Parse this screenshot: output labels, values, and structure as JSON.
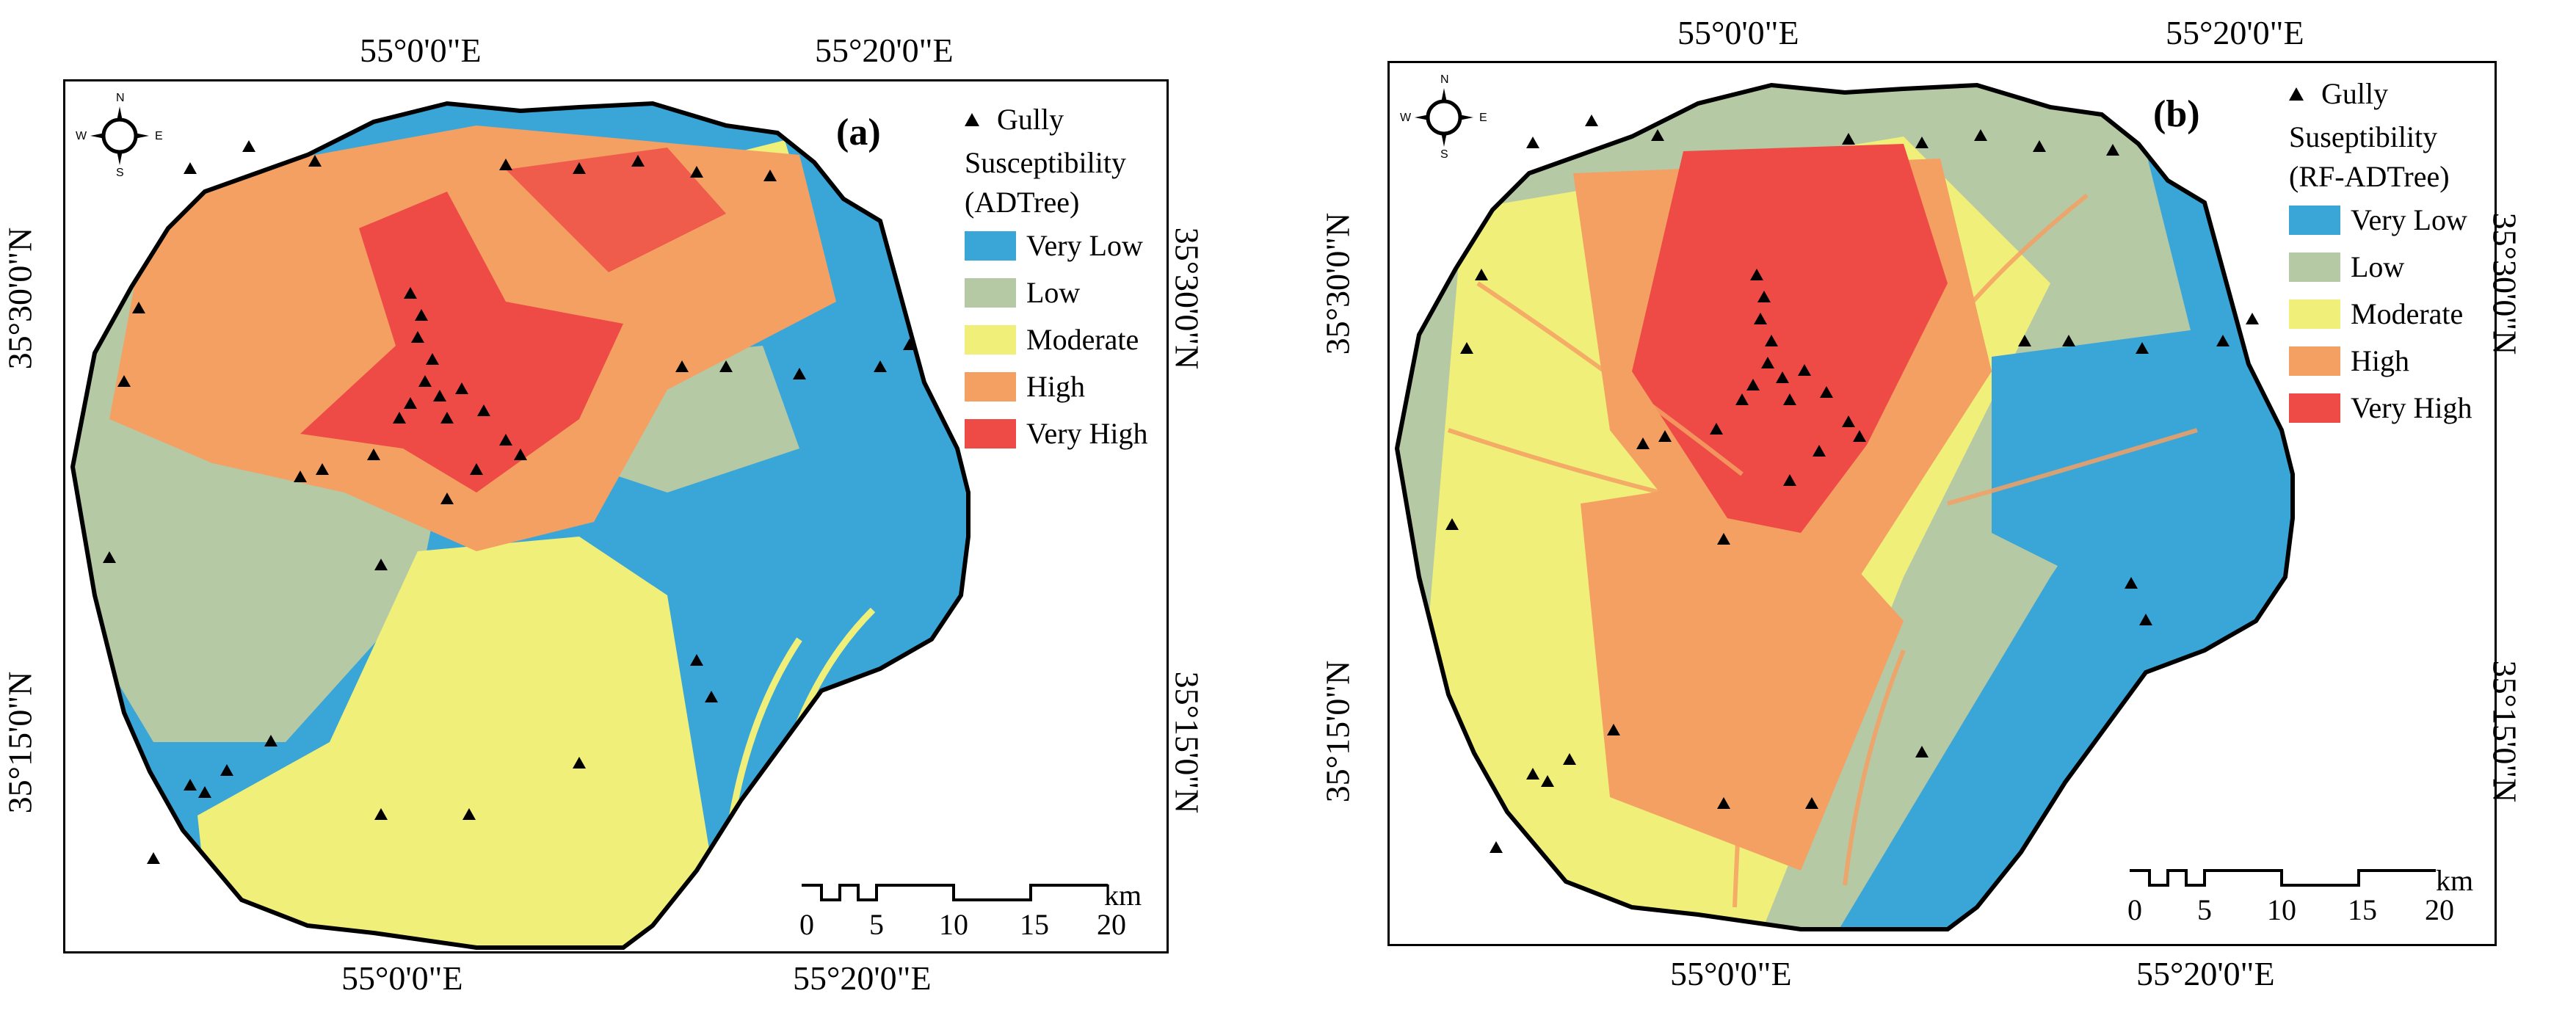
{
  "panels": [
    {
      "tag": "(a)",
      "legend": {
        "marker_label": "Gully",
        "title_lines": [
          "Susceptibility",
          "(ADTree)"
        ],
        "classes": [
          {
            "label": "Very Low",
            "color": "#3aa6d8"
          },
          {
            "label": "Low",
            "color": "#b6c9a5"
          },
          {
            "label": "Moderate",
            "color": "#efef7a"
          },
          {
            "label": "High",
            "color": "#f4a063"
          },
          {
            "label": "Very High",
            "color": "#ee4b46"
          }
        ]
      },
      "axes": {
        "top": [
          "55°0'0\"E",
          "55°20'0\"E"
        ],
        "bottom": [
          "55°0'0\"E",
          "55°20'0\"E"
        ],
        "left": [
          "35°30'0\"N",
          "35°15'0\"N"
        ],
        "right": [
          "35°30'0\"N",
          "35°15'0\"N"
        ]
      }
    },
    {
      "tag": "(b)",
      "legend": {
        "marker_label": "Gully",
        "title_lines": [
          "Suseptibility",
          "(RF-ADTree)"
        ],
        "classes": [
          {
            "label": "Very Low",
            "color": "#3aa6d8"
          },
          {
            "label": "Low",
            "color": "#b6c9a5"
          },
          {
            "label": "Moderate",
            "color": "#efef7a"
          },
          {
            "label": "High",
            "color": "#f4a063"
          },
          {
            "label": "Very High",
            "color": "#ee4b46"
          }
        ]
      },
      "axes": {
        "top": [
          "55°0'0\"E",
          "55°20'0\"E"
        ],
        "bottom": [
          "55°0'0\"E",
          "55°20'0\"E"
        ],
        "left": [
          "35°30'0\"N",
          "35°15'0\"N"
        ],
        "right": [
          "35°30'0\"N",
          "35°15'0\"N"
        ]
      }
    }
  ],
  "scale_bar": {
    "unit": "km",
    "ticks": [
      "0",
      "5",
      "10",
      "15",
      "20"
    ]
  },
  "compass": {
    "n": "N",
    "s": "S",
    "e": "E",
    "w": "W"
  }
}
